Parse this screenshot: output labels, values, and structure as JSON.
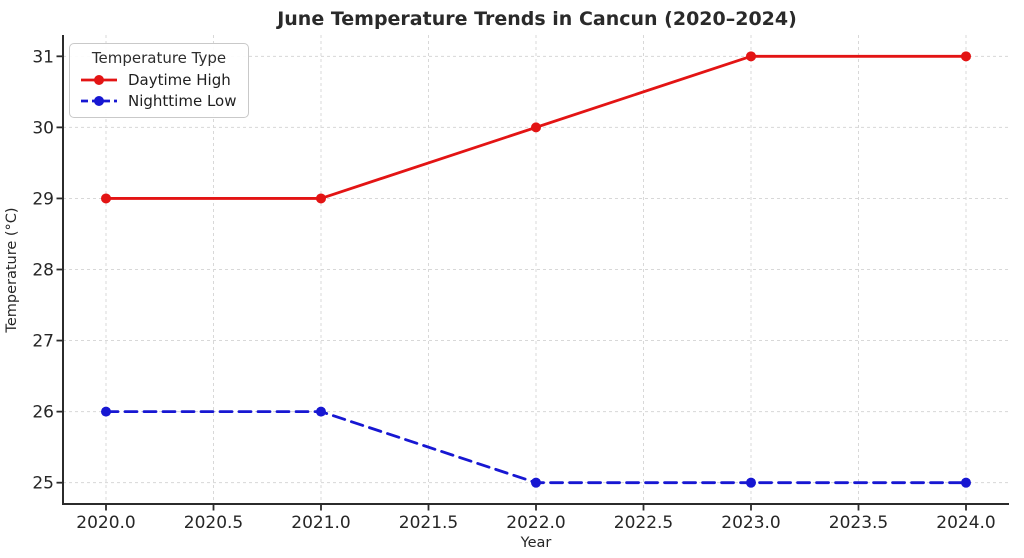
{
  "title": "June Temperature Trends in Cancun (2020–2024)",
  "legend": {
    "title": "Temperature Type",
    "items": [
      {
        "label": "Daytime High",
        "color": "#e31414",
        "style": "solid"
      },
      {
        "label": "Nighttime Low",
        "color": "#1717d2",
        "style": "dashed"
      }
    ]
  },
  "chart_data": {
    "type": "line",
    "title": "June Temperature Trends in Cancun (2020–2024)",
    "xlabel": "Year",
    "ylabel": "Temperature (°C)",
    "x": [
      2020,
      2021,
      2022,
      2023,
      2024
    ],
    "series": [
      {
        "name": "Daytime High",
        "values": [
          29,
          29,
          30,
          31,
          31
        ],
        "color": "#e31414",
        "line_style": "solid",
        "marker": "circle"
      },
      {
        "name": "Nighttime Low",
        "values": [
          26,
          26,
          25,
          25,
          25
        ],
        "color": "#1717d2",
        "line_style": "dashed",
        "marker": "circle"
      }
    ],
    "xlim": [
      2019.8,
      2024.2
    ],
    "ylim": [
      24.7,
      31.3
    ],
    "x_tick_values": [
      2020.0,
      2020.5,
      2021.0,
      2021.5,
      2022.0,
      2022.5,
      2023.0,
      2023.5,
      2024.0
    ],
    "x_tick_labels": [
      "2020.0",
      "2020.5",
      "2021.0",
      "2021.5",
      "2022.0",
      "2022.5",
      "2023.0",
      "2023.5",
      "2024.0"
    ],
    "y_tick_values": [
      25,
      26,
      27,
      28,
      29,
      30,
      31
    ],
    "y_tick_labels": [
      "25",
      "26",
      "27",
      "28",
      "29",
      "30",
      "31"
    ],
    "grid": true,
    "grid_color": "#d8d8d8",
    "spine_color": "#2b2b2b",
    "legend_position": "upper left"
  }
}
